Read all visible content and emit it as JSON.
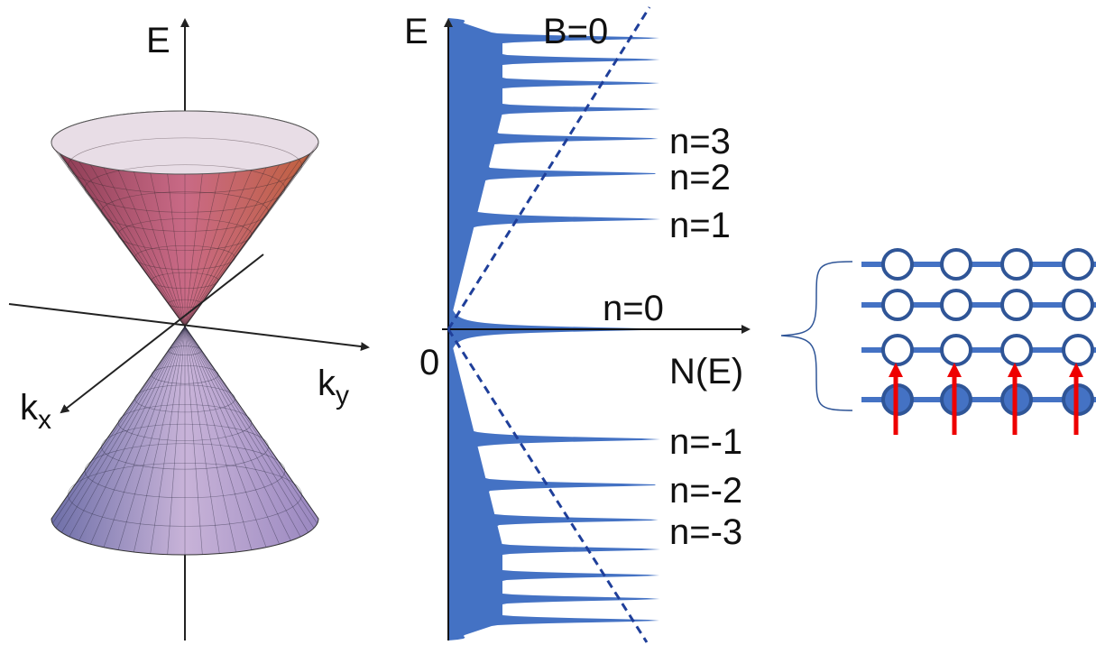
{
  "cone": {
    "e_label": "E",
    "kx_label": {
      "base": "k",
      "sub": "x"
    },
    "ky_label": {
      "base": "k",
      "sub": "y"
    }
  },
  "dos": {
    "e_label": "E",
    "b0_label": "B=0",
    "origin_label": "0",
    "n_axis_label": "N(E)",
    "levels": [
      "n=3",
      "n=2",
      "n=1",
      "n=0",
      "n=-1",
      "n=-2",
      "n=-3"
    ]
  }
}
